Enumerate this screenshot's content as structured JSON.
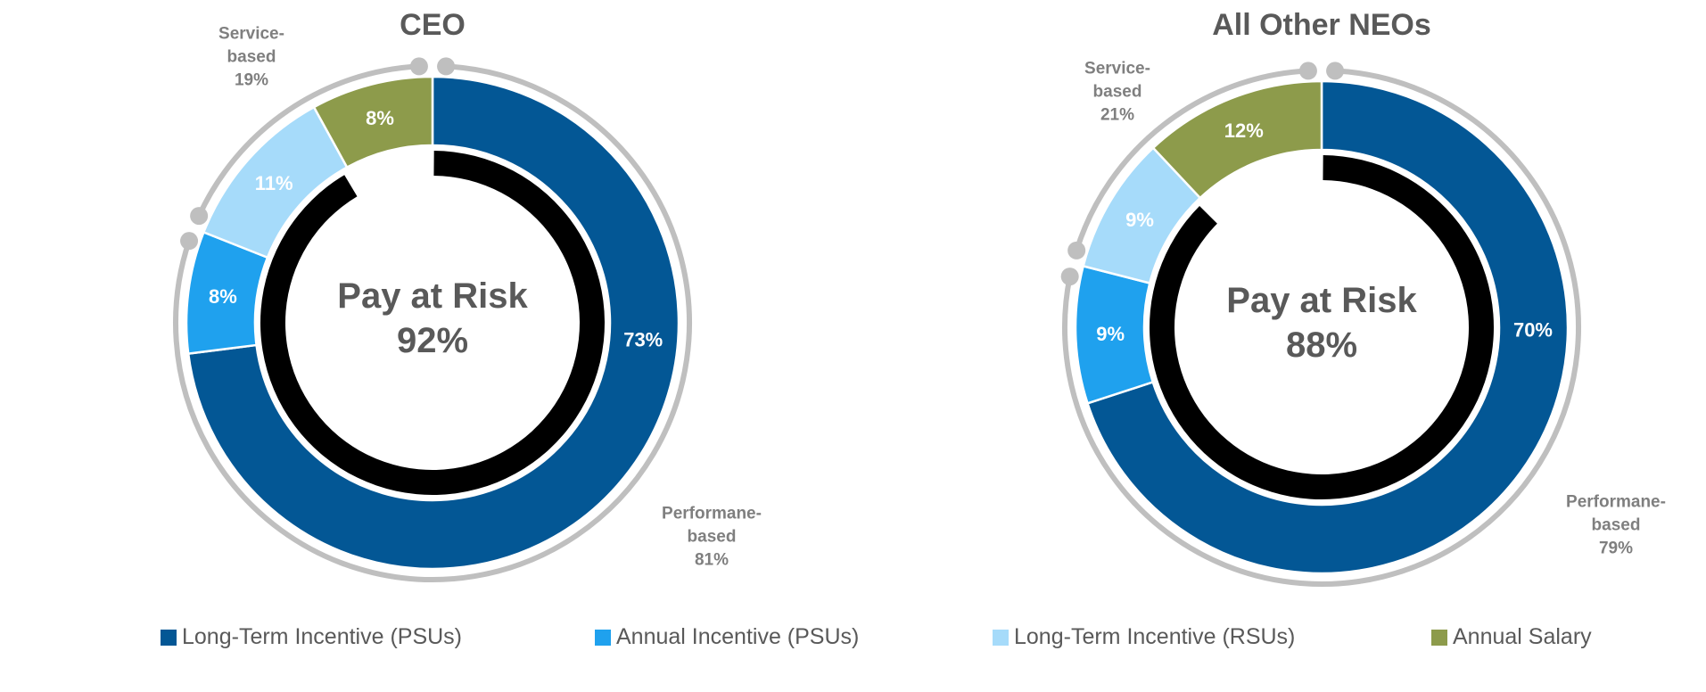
{
  "colors": {
    "lti_psu": "#035795",
    "ai_psu": "#1fa1ee",
    "lti_rsu": "#a6dbfa",
    "salary": "#8d9b4b",
    "outer_ring": "#bfbfbf",
    "inner_ring": "#000000",
    "title_text": "#595959",
    "annotation_text": "#7f7f7f",
    "label_text": "#ffffff"
  },
  "chart_data": [
    {
      "type": "donut",
      "title": "CEO",
      "center_label": "Pay at Risk",
      "center_value": "92%",
      "series": [
        {
          "name": "Long-Term Incentive (PSUs)",
          "value": 73,
          "label": "73%",
          "color_key": "lti_psu"
        },
        {
          "name": "Annual Incentive (PSUs)",
          "value": 8,
          "label": "8%",
          "color_key": "ai_psu"
        },
        {
          "name": "Long-Term Incentive (RSUs)",
          "value": 11,
          "label": "11%",
          "color_key": "lti_rsu"
        },
        {
          "name": "Annual Salary",
          "value": 8,
          "label": "8%",
          "color_key": "salary"
        }
      ],
      "groups": [
        {
          "lines": [
            "Performane-",
            "based",
            "81%"
          ],
          "value": 81
        },
        {
          "lines": [
            "Service-",
            "based",
            "19%"
          ],
          "value": 19
        }
      ]
    },
    {
      "type": "donut",
      "title": "All Other NEOs",
      "center_label": "Pay at Risk",
      "center_value": "88%",
      "series": [
        {
          "name": "Long-Term Incentive (PSUs)",
          "value": 70,
          "label": "70%",
          "color_key": "lti_psu"
        },
        {
          "name": "Annual Incentive (PSUs)",
          "value": 9,
          "label": "9%",
          "color_key": "ai_psu"
        },
        {
          "name": "Long-Term Incentive (RSUs)",
          "value": 9,
          "label": "9%",
          "color_key": "lti_rsu"
        },
        {
          "name": "Annual Salary",
          "value": 12,
          "label": "12%",
          "color_key": "salary"
        }
      ],
      "groups": [
        {
          "lines": [
            "Performane-",
            "based",
            "79%"
          ],
          "value": 79
        },
        {
          "lines": [
            "Service-",
            "based",
            "21%"
          ],
          "value": 21
        }
      ]
    }
  ],
  "legend": [
    {
      "label": "Long-Term Incentive (PSUs)",
      "color_key": "lti_psu"
    },
    {
      "label": "Annual Incentive (PSUs)",
      "color_key": "ai_psu"
    },
    {
      "label": "Long-Term Incentive (RSUs)",
      "color_key": "lti_rsu"
    },
    {
      "label": "Annual Salary",
      "color_key": "salary"
    }
  ]
}
